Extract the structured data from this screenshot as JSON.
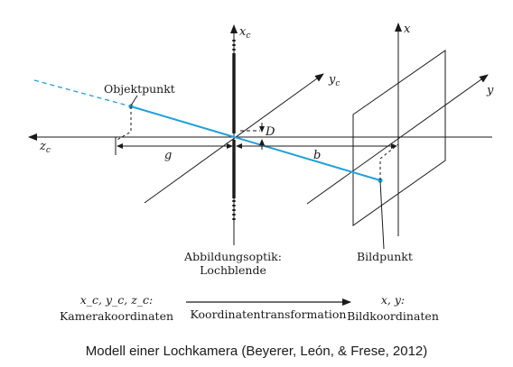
{
  "labels": {
    "xc_axis": "x",
    "xc_sub": "c",
    "yc_axis": "y",
    "yc_sub": "c",
    "zc_axis": "z",
    "zc_sub": "c",
    "x_axis": "x",
    "y_axis": "y",
    "objektpunkt": "Objektpunkt",
    "bildpunkt": "Bildpunkt",
    "dist_g": "g",
    "dist_b": "b",
    "offset_d": "D",
    "optik_line1": "Abbildungsoptik:",
    "optik_line2": "Lochblende"
  },
  "footer": {
    "left_line1": "x_c, y_c, z_c:",
    "left_line2": "Kamerakoordinaten",
    "transform": "Koordinatentransformation",
    "right_line1": "x, y:",
    "right_line2": "Bildkoordinaten"
  },
  "caption": "Modell einer Lochkamera (Beyerer, León, & Frese, 2012)",
  "colors": {
    "ray": "#1ea0dc",
    "ink": "#1a1a1a"
  }
}
